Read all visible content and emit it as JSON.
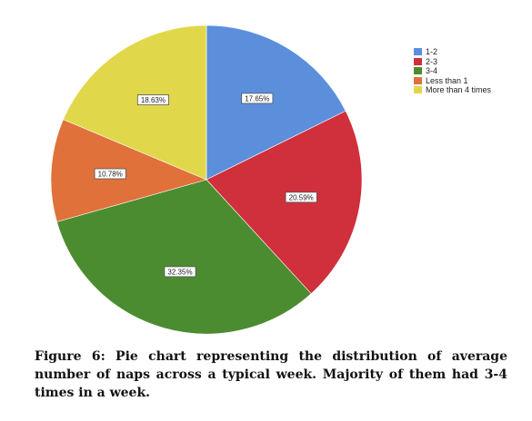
{
  "chart_data": {
    "type": "pie",
    "categories": [
      "1-2",
      "2-3",
      "3-4",
      "Less than 1",
      "More than 4 times"
    ],
    "values": [
      17.65,
      20.59,
      32.35,
      10.78,
      18.63
    ],
    "labels": [
      "17.65%",
      "20.59%",
      "32.35%",
      "10.78%",
      "18.63%"
    ],
    "colors": [
      "#5b8fdc",
      "#d02f3c",
      "#4c8c30",
      "#e0713a",
      "#e0d84a"
    ],
    "legend_position": "top-right"
  },
  "caption": {
    "text": "Figure 6: Pie chart representing the distribution of average number of naps across a typical week.  Majority of them had 3-4 times in a week."
  }
}
